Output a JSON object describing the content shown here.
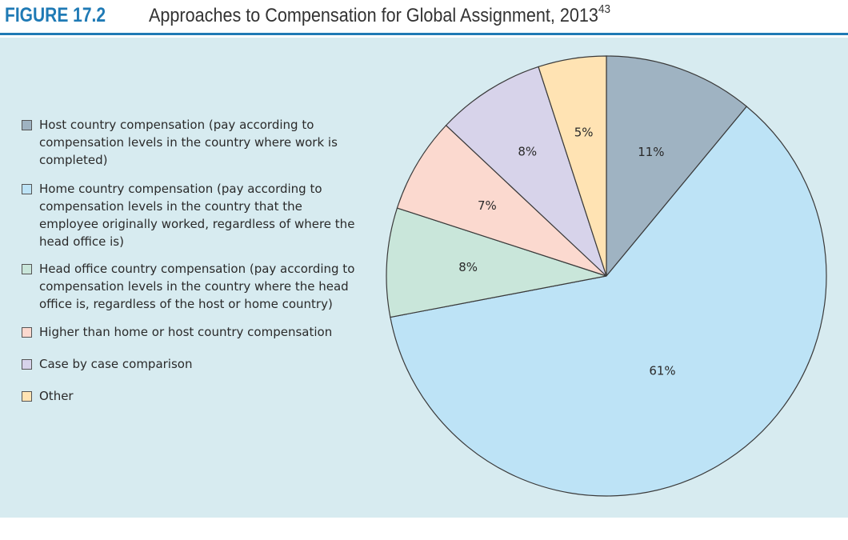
{
  "figure": {
    "label": "FIGURE 17.2",
    "title": "Approaches to Compensation for Global Assignment, 2013",
    "note_ref": "43"
  },
  "colors": {
    "header_accent": "#1f7ab5",
    "panel_background": "#d7ebf0",
    "slice_stroke": "#3a3a3a"
  },
  "chart_data": {
    "type": "pie",
    "start": "12 o'clock, clockwise",
    "slices": [
      {
        "label": "Host country compensation (pay according to compensation levels in the country where work is completed)",
        "value": 11,
        "display": "11%",
        "color": "#9fb3c2"
      },
      {
        "label": "Home country compensation (pay according to compensation levels in the country that the employee originally worked, regardless of where the head office is)",
        "value": 61,
        "display": "61%",
        "color": "#bde3f6"
      },
      {
        "label": "Head office country compensation (pay according to compensation levels in the country where the head office is, regardless of the host or home country)",
        "value": 8,
        "display": "8%",
        "color": "#c9e6da"
      },
      {
        "label": "Higher than home or host country compensation",
        "value": 7,
        "display": "7%",
        "color": "#fbd9cf"
      },
      {
        "label": "Case by case comparison",
        "value": 8,
        "display": "8%",
        "color": "#d7d3ea"
      },
      {
        "label": "Other",
        "value": 5,
        "display": "5%",
        "color": "#ffe3b3"
      }
    ],
    "legend_position": "left"
  }
}
